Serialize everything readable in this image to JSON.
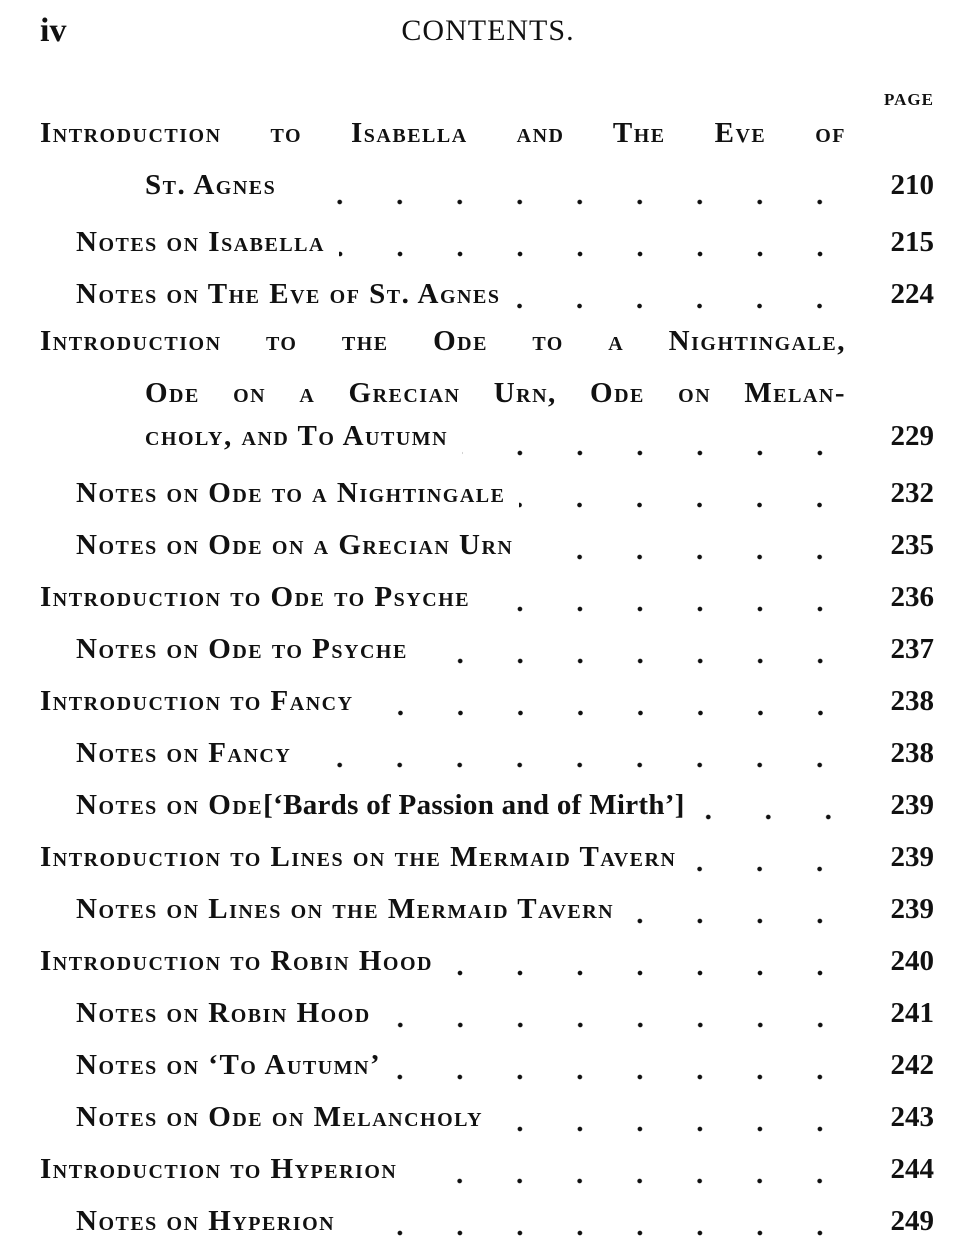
{
  "header": {
    "folio": "iv",
    "title": "CONTENTS.",
    "page_label": "PAGE"
  },
  "entries": [
    {
      "level": 0,
      "lines": [
        "Introduction to Isabella and The Eve of",
        "St. Agnes"
      ],
      "page": "210"
    },
    {
      "level": 1,
      "lines": [
        "Notes on Isabella"
      ],
      "page": "215"
    },
    {
      "level": 1,
      "lines": [
        "Notes on The Eve of St. Agnes"
      ],
      "page": "224"
    },
    {
      "level": 0,
      "lines": [
        "Introduction to the Ode to a Nightingale,",
        "Ode on a Grecian Urn, Ode on Melan-",
        "choly, and To Autumn"
      ],
      "page": "229"
    },
    {
      "level": 1,
      "lines": [
        "Notes on Ode to a Nightingale"
      ],
      "page": "232"
    },
    {
      "level": 1,
      "lines": [
        "Notes on Ode on a Grecian Urn"
      ],
      "page": "235"
    },
    {
      "level": 0,
      "lines": [
        "Introduction to Ode to Psyche"
      ],
      "page": "236"
    },
    {
      "level": 1,
      "lines": [
        "Notes on Ode to Psyche"
      ],
      "page": "237"
    },
    {
      "level": 0,
      "lines": [
        "Introduction to Fancy"
      ],
      "page": "238"
    },
    {
      "level": 1,
      "lines": [
        "Notes on Fancy"
      ],
      "page": "238"
    },
    {
      "level": 1,
      "lines": [
        "Notes on Ode "
      ],
      "plain": "[‘Bards of Passion and of Mirth’]",
      "page": "239"
    },
    {
      "level": 0,
      "lines": [
        "Introduction to Lines on the Mermaid Tavern"
      ],
      "page": "239"
    },
    {
      "level": 1,
      "lines": [
        "Notes on Lines on the Mermaid Tavern"
      ],
      "page": "239"
    },
    {
      "level": 0,
      "lines": [
        "Introduction to Robin Hood"
      ],
      "page": "240"
    },
    {
      "level": 1,
      "lines": [
        "Notes on Robin Hood"
      ],
      "page": "241"
    },
    {
      "level": 1,
      "lines": [
        "Notes on ‘To Autumn’"
      ],
      "page": "242"
    },
    {
      "level": 1,
      "lines": [
        "Notes on Ode on Melancholy"
      ],
      "page": "243"
    },
    {
      "level": 0,
      "lines": [
        "Introduction to Hyperion"
      ],
      "page": "244"
    },
    {
      "level": 1,
      "lines": [
        "Notes on Hyperion"
      ],
      "page": "249"
    }
  ]
}
